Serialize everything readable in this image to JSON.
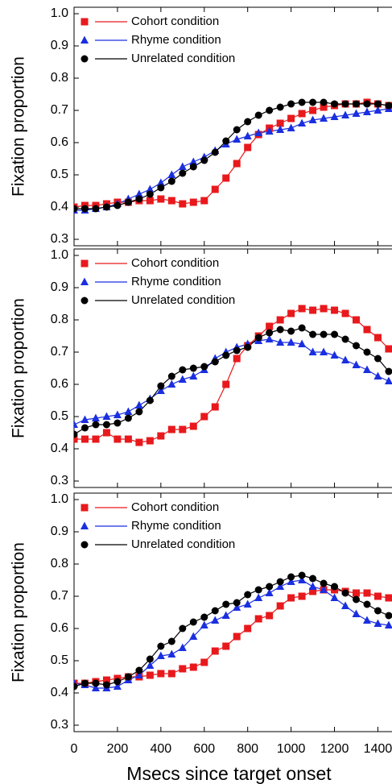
{
  "chart_data": [
    {
      "type": "line",
      "ylabel": "Fixation proportion",
      "x": [
        0,
        50,
        100,
        150,
        200,
        250,
        300,
        350,
        400,
        450,
        500,
        550,
        600,
        650,
        700,
        750,
        800,
        850,
        900,
        950,
        1000,
        1050,
        1100,
        1150,
        1200,
        1250,
        1300,
        1350,
        1400,
        1450
      ],
      "ylim": [
        0.28,
        1.02
      ],
      "yticks": [
        0.3,
        0.4,
        0.5,
        0.6,
        0.7,
        0.8,
        0.9,
        {
          "value": 1,
          "label": "1.0"
        }
      ],
      "series": [
        {
          "name": "Cohort condition",
          "color": "#e8191c",
          "marker": "square",
          "values": [
            0.4,
            0.405,
            0.405,
            0.41,
            0.415,
            0.415,
            0.42,
            0.42,
            0.425,
            0.42,
            0.41,
            0.415,
            0.42,
            0.455,
            0.49,
            0.535,
            0.585,
            0.625,
            0.645,
            0.66,
            0.675,
            0.69,
            0.7,
            0.71,
            0.715,
            0.72,
            0.72,
            0.725,
            0.72,
            0.715
          ]
        },
        {
          "name": "Rhyme condition",
          "color": "#1a2fe0",
          "marker": "triangle",
          "values": [
            0.39,
            0.39,
            0.395,
            0.4,
            0.41,
            0.425,
            0.44,
            0.455,
            0.475,
            0.5,
            0.525,
            0.54,
            0.555,
            0.575,
            0.595,
            0.61,
            0.62,
            0.63,
            0.635,
            0.64,
            0.645,
            0.66,
            0.67,
            0.675,
            0.68,
            0.685,
            0.69,
            0.695,
            0.7,
            0.705
          ]
        },
        {
          "name": "Unrelated condition",
          "color": "#000000",
          "marker": "circle",
          "values": [
            0.395,
            0.395,
            0.395,
            0.4,
            0.405,
            0.415,
            0.425,
            0.44,
            0.46,
            0.48,
            0.505,
            0.525,
            0.545,
            0.57,
            0.605,
            0.64,
            0.665,
            0.685,
            0.7,
            0.71,
            0.72,
            0.725,
            0.725,
            0.725,
            0.72,
            0.72,
            0.72,
            0.72,
            0.72,
            0.715
          ]
        }
      ]
    },
    {
      "type": "line",
      "ylabel": "Fixation proportion",
      "x": [
        0,
        50,
        100,
        150,
        200,
        250,
        300,
        350,
        400,
        450,
        500,
        550,
        600,
        650,
        700,
        750,
        800,
        850,
        900,
        950,
        1000,
        1050,
        1100,
        1150,
        1200,
        1250,
        1300,
        1350,
        1400,
        1450
      ],
      "ylim": [
        0.28,
        1.02
      ],
      "yticks": [
        0.3,
        0.4,
        0.5,
        0.6,
        0.7,
        0.8,
        0.9,
        {
          "value": 1,
          "label": "1.0"
        }
      ],
      "series": [
        {
          "name": "Cohort condition",
          "color": "#e8191c",
          "marker": "square",
          "values": [
            0.43,
            0.43,
            0.43,
            0.45,
            0.43,
            0.43,
            0.42,
            0.425,
            0.44,
            0.46,
            0.46,
            0.47,
            0.5,
            0.53,
            0.6,
            0.68,
            0.72,
            0.75,
            0.78,
            0.8,
            0.82,
            0.835,
            0.83,
            0.835,
            0.83,
            0.82,
            0.8,
            0.77,
            0.745,
            0.71
          ]
        },
        {
          "name": "Rhyme condition",
          "color": "#1a2fe0",
          "marker": "triangle",
          "values": [
            0.475,
            0.49,
            0.495,
            0.5,
            0.505,
            0.515,
            0.535,
            0.555,
            0.58,
            0.6,
            0.615,
            0.625,
            0.645,
            0.68,
            0.7,
            0.715,
            0.725,
            0.735,
            0.74,
            0.73,
            0.73,
            0.725,
            0.7,
            0.7,
            0.69,
            0.675,
            0.66,
            0.645,
            0.625,
            0.61
          ]
        },
        {
          "name": "Unrelated condition",
          "color": "#000000",
          "marker": "circle",
          "values": [
            0.445,
            0.465,
            0.475,
            0.475,
            0.48,
            0.495,
            0.515,
            0.55,
            0.595,
            0.625,
            0.645,
            0.65,
            0.655,
            0.67,
            0.69,
            0.705,
            0.715,
            0.745,
            0.76,
            0.77,
            0.765,
            0.775,
            0.755,
            0.755,
            0.755,
            0.74,
            0.72,
            0.7,
            0.68,
            0.64
          ]
        }
      ]
    },
    {
      "type": "line",
      "ylabel": "Fixation proportion",
      "xlabel": "Msecs since target onset",
      "x": [
        0,
        50,
        100,
        150,
        200,
        250,
        300,
        350,
        400,
        450,
        500,
        550,
        600,
        650,
        700,
        750,
        800,
        850,
        900,
        950,
        1000,
        1050,
        1100,
        1150,
        1200,
        1250,
        1300,
        1350,
        1400,
        1450
      ],
      "xlim": [
        0,
        1465
      ],
      "xticks": [
        0,
        200,
        400,
        600,
        800,
        1000,
        1200,
        1400
      ],
      "ylim": [
        0.28,
        1.02
      ],
      "yticks": [
        0.3,
        0.4,
        0.5,
        0.6,
        0.7,
        0.8,
        0.9,
        {
          "value": 1,
          "label": "1.0"
        }
      ],
      "series": [
        {
          "name": "Cohort condition",
          "color": "#e8191c",
          "marker": "square",
          "values": [
            0.43,
            0.43,
            0.435,
            0.44,
            0.445,
            0.45,
            0.45,
            0.455,
            0.46,
            0.46,
            0.475,
            0.48,
            0.495,
            0.53,
            0.545,
            0.575,
            0.6,
            0.63,
            0.64,
            0.67,
            0.695,
            0.7,
            0.715,
            0.72,
            0.72,
            0.715,
            0.71,
            0.71,
            0.7,
            0.695
          ]
        },
        {
          "name": "Rhyme condition",
          "color": "#1a2fe0",
          "marker": "triangle",
          "values": [
            0.43,
            0.425,
            0.415,
            0.415,
            0.42,
            0.44,
            0.455,
            0.485,
            0.515,
            0.52,
            0.54,
            0.575,
            0.61,
            0.625,
            0.64,
            0.665,
            0.675,
            0.695,
            0.71,
            0.73,
            0.745,
            0.75,
            0.73,
            0.72,
            0.695,
            0.67,
            0.645,
            0.625,
            0.615,
            0.61
          ]
        },
        {
          "name": "Unrelated condition",
          "color": "#000000",
          "marker": "circle",
          "values": [
            0.42,
            0.43,
            0.43,
            0.425,
            0.435,
            0.45,
            0.47,
            0.505,
            0.545,
            0.56,
            0.6,
            0.62,
            0.635,
            0.655,
            0.675,
            0.68,
            0.705,
            0.72,
            0.73,
            0.745,
            0.76,
            0.765,
            0.755,
            0.74,
            0.73,
            0.71,
            0.69,
            0.675,
            0.655,
            0.64
          ]
        }
      ]
    }
  ]
}
